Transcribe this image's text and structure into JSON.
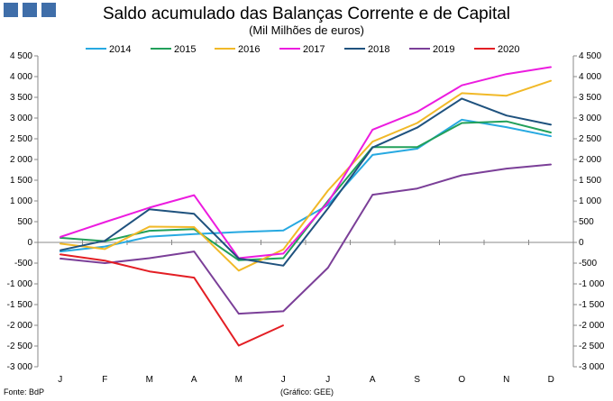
{
  "header": {
    "title": "Saldo acumulado das Balanças Corrente e de Capital",
    "subtitle": "(Mil Milhões de euros)"
  },
  "footer": {
    "source": "Fonte: BdP",
    "credit": "(Gráfico: GEE)"
  },
  "chart_data": {
    "type": "line",
    "categories": [
      "J",
      "F",
      "M",
      "A",
      "M",
      "J",
      "J",
      "A",
      "S",
      "O",
      "N",
      "D"
    ],
    "ylim": [
      -3000,
      4500
    ],
    "yticks": [
      -3000,
      -2500,
      -2000,
      -1500,
      -1000,
      -500,
      0,
      500,
      1000,
      1500,
      2000,
      2500,
      3000,
      3500,
      4000,
      4500
    ],
    "ytick_labels": [
      "-3 000",
      "-2 500",
      "-2 000",
      "-1 500",
      "-1 000",
      "-500",
      "0",
      "500",
      "1 000",
      "1 500",
      "2 000",
      "2 500",
      "3 000",
      "3 500",
      "4 000",
      "4 500"
    ],
    "grid": false,
    "legend_position": "top",
    "series": [
      {
        "name": "2014",
        "color": "#27a9e1",
        "values": [
          -220,
          -100,
          140,
          200,
          250,
          290,
          900,
          2110,
          2260,
          2960,
          2780,
          2560
        ]
      },
      {
        "name": "2015",
        "color": "#22a05a",
        "values": [
          110,
          30,
          280,
          320,
          -430,
          -380,
          1000,
          2300,
          2300,
          2880,
          2920,
          2650
        ]
      },
      {
        "name": "2016",
        "color": "#f1b928",
        "values": [
          -30,
          -160,
          380,
          370,
          -680,
          -170,
          1250,
          2430,
          2880,
          3600,
          3540,
          3900
        ]
      },
      {
        "name": "2017",
        "color": "#ec1cdf",
        "values": [
          130,
          490,
          840,
          1140,
          -380,
          -270,
          960,
          2720,
          3150,
          3790,
          4060,
          4230
        ]
      },
      {
        "name": "2018",
        "color": "#1f527e",
        "values": [
          -190,
          40,
          800,
          690,
          -390,
          -560,
          820,
          2290,
          2770,
          3470,
          3060,
          2840
        ]
      },
      {
        "name": "2019",
        "color": "#7b3f98",
        "values": [
          -390,
          -500,
          -380,
          -220,
          -1720,
          -1660,
          -610,
          1150,
          1300,
          1620,
          1780,
          1880
        ]
      },
      {
        "name": "2020",
        "color": "#e31e24",
        "values": [
          -290,
          -440,
          -700,
          -850,
          -2490,
          -2000,
          null,
          null,
          null,
          null,
          null,
          null
        ]
      }
    ]
  }
}
